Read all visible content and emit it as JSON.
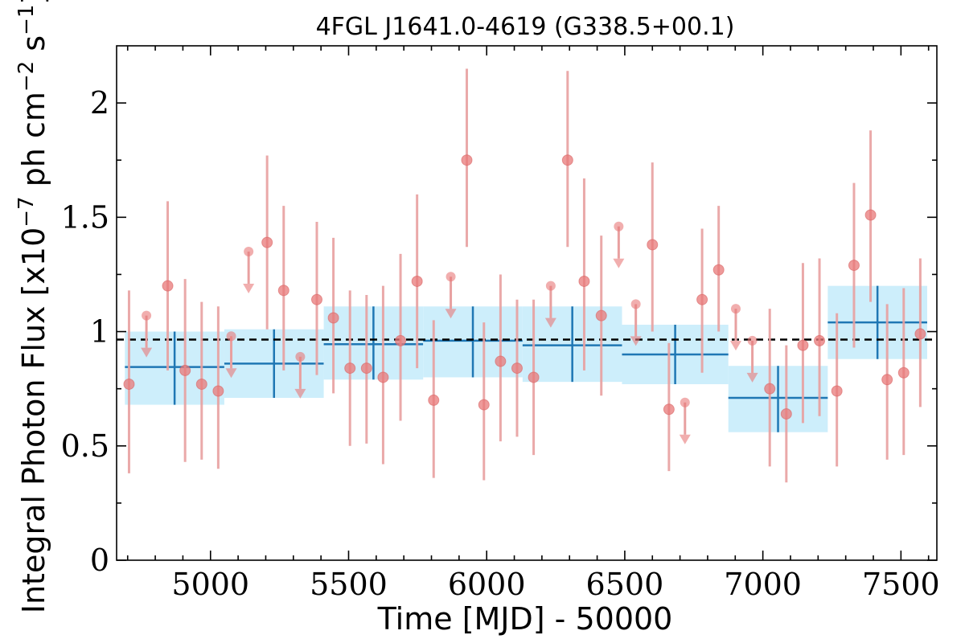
{
  "chart_data": {
    "type": "scatter",
    "title": "4FGL J1641.0-4619 (G338.5+00.1)",
    "xlabel": "Time [MJD] - 50000",
    "ylabel": "Integral Photon Flux [x10",
    "ylabel_exp1": "−7",
    "ylabel_mid": " ph cm",
    "ylabel_exp2": "−2",
    "ylabel_mid2": " s",
    "ylabel_exp3": "−1",
    "ylabel_end": "]",
    "xlim": [
      4660,
      7630
    ],
    "ylim": [
      0,
      2.25
    ],
    "x_ticks": [
      5000,
      5500,
      6000,
      6500,
      7000,
      7500
    ],
    "x_tick_labels": [
      "5000",
      "5500",
      "6000",
      "6500",
      "7000",
      "7500"
    ],
    "y_ticks": [
      0,
      0.5,
      1,
      1.5,
      2
    ],
    "y_tick_labels": [
      "0",
      "0.5",
      "1",
      "1.5",
      "2"
    ],
    "mean_flux": 0.965,
    "colors": {
      "points": "#e87878",
      "errorbars": "#e8a0a0",
      "bins_fill": "#cdeefb",
      "bins_line": "#1f77b4",
      "mean_line": "#000000"
    },
    "measurements": [
      {
        "x": 4705,
        "y": 0.77,
        "lo": 0.38,
        "hi": 1.18
      },
      {
        "x": 4845,
        "y": 1.2,
        "lo": 0.83,
        "hi": 1.57
      },
      {
        "x": 4908,
        "y": 0.83,
        "lo": 0.43,
        "hi": 1.23
      },
      {
        "x": 4968,
        "y": 0.77,
        "lo": 0.44,
        "hi": 1.13
      },
      {
        "x": 5028,
        "y": 0.74,
        "lo": 0.4,
        "hi": 1.11
      },
      {
        "x": 5205,
        "y": 1.39,
        "lo": 1.01,
        "hi": 1.77
      },
      {
        "x": 5265,
        "y": 1.18,
        "lo": 0.83,
        "hi": 1.55
      },
      {
        "x": 5385,
        "y": 1.14,
        "lo": 0.81,
        "hi": 1.48
      },
      {
        "x": 5445,
        "y": 1.06,
        "lo": 0.73,
        "hi": 1.41
      },
      {
        "x": 5505,
        "y": 0.84,
        "lo": 0.5,
        "hi": 1.18
      },
      {
        "x": 5565,
        "y": 0.84,
        "lo": 0.51,
        "hi": 1.16
      },
      {
        "x": 5625,
        "y": 0.8,
        "lo": 0.42,
        "hi": 1.2
      },
      {
        "x": 5688,
        "y": 0.96,
        "lo": 0.61,
        "hi": 1.34
      },
      {
        "x": 5748,
        "y": 1.22,
        "lo": 0.84,
        "hi": 1.6
      },
      {
        "x": 5808,
        "y": 0.7,
        "lo": 0.36,
        "hi": 1.05
      },
      {
        "x": 5928,
        "y": 1.75,
        "lo": 1.37,
        "hi": 2.15
      },
      {
        "x": 5990,
        "y": 0.68,
        "lo": 0.35,
        "hi": 1.04
      },
      {
        "x": 6050,
        "y": 0.87,
        "lo": 0.52,
        "hi": 1.25
      },
      {
        "x": 6110,
        "y": 0.84,
        "lo": 0.54,
        "hi": 1.14
      },
      {
        "x": 6170,
        "y": 0.8,
        "lo": 0.46,
        "hi": 1.14
      },
      {
        "x": 6293,
        "y": 1.75,
        "lo": 1.37,
        "hi": 2.14
      },
      {
        "x": 6353,
        "y": 1.22,
        "lo": 0.83,
        "hi": 1.67
      },
      {
        "x": 6415,
        "y": 1.07,
        "lo": 0.72,
        "hi": 1.42
      },
      {
        "x": 6600,
        "y": 1.38,
        "lo": 1.0,
        "hi": 1.74
      },
      {
        "x": 6660,
        "y": 0.66,
        "lo": 0.39,
        "hi": 0.95
      },
      {
        "x": 6780,
        "y": 1.14,
        "lo": 0.82,
        "hi": 1.45
      },
      {
        "x": 6840,
        "y": 1.27,
        "lo": 1.0,
        "hi": 1.55
      },
      {
        "x": 7025,
        "y": 0.75,
        "lo": 0.41,
        "hi": 1.1
      },
      {
        "x": 7085,
        "y": 0.64,
        "lo": 0.34,
        "hi": 0.94
      },
      {
        "x": 7145,
        "y": 0.94,
        "lo": 0.6,
        "hi": 1.3
      },
      {
        "x": 7205,
        "y": 0.96,
        "lo": 0.63,
        "hi": 1.32
      },
      {
        "x": 7268,
        "y": 0.74,
        "lo": 0.41,
        "hi": 1.08
      },
      {
        "x": 7330,
        "y": 1.29,
        "lo": 0.93,
        "hi": 1.65
      },
      {
        "x": 7390,
        "y": 1.51,
        "lo": 1.13,
        "hi": 1.88
      },
      {
        "x": 7450,
        "y": 0.79,
        "lo": 0.44,
        "hi": 1.12
      },
      {
        "x": 7510,
        "y": 0.82,
        "lo": 0.46,
        "hi": 1.19
      },
      {
        "x": 7570,
        "y": 0.99,
        "lo": 0.67,
        "hi": 1.32
      }
    ],
    "upper_limits": [
      {
        "x": 4768,
        "y": 1.07
      },
      {
        "x": 5075,
        "y": 0.98
      },
      {
        "x": 5138,
        "y": 1.35
      },
      {
        "x": 5325,
        "y": 0.89
      },
      {
        "x": 5870,
        "y": 1.24
      },
      {
        "x": 6232,
        "y": 1.2
      },
      {
        "x": 6478,
        "y": 1.46
      },
      {
        "x": 6540,
        "y": 1.12
      },
      {
        "x": 6718,
        "y": 0.69
      },
      {
        "x": 6902,
        "y": 1.1
      },
      {
        "x": 6962,
        "y": 0.96
      }
    ],
    "bins": [
      {
        "x0": 4690,
        "x1": 5050,
        "y": 0.845,
        "lo": 0.68,
        "hi": 1.0
      },
      {
        "x0": 5050,
        "x1": 5410,
        "y": 0.86,
        "lo": 0.71,
        "hi": 1.01
      },
      {
        "x0": 5410,
        "x1": 5770,
        "y": 0.945,
        "lo": 0.79,
        "hi": 1.11
      },
      {
        "x0": 5770,
        "x1": 6130,
        "y": 0.96,
        "lo": 0.8,
        "hi": 1.11
      },
      {
        "x0": 6130,
        "x1": 6490,
        "y": 0.94,
        "lo": 0.78,
        "hi": 1.11
      },
      {
        "x0": 6490,
        "x1": 6875,
        "y": 0.9,
        "lo": 0.77,
        "hi": 1.03
      },
      {
        "x0": 6875,
        "x1": 7235,
        "y": 0.71,
        "lo": 0.56,
        "hi": 0.85
      },
      {
        "x0": 7235,
        "x1": 7595,
        "y": 1.04,
        "lo": 0.88,
        "hi": 1.2
      }
    ]
  }
}
